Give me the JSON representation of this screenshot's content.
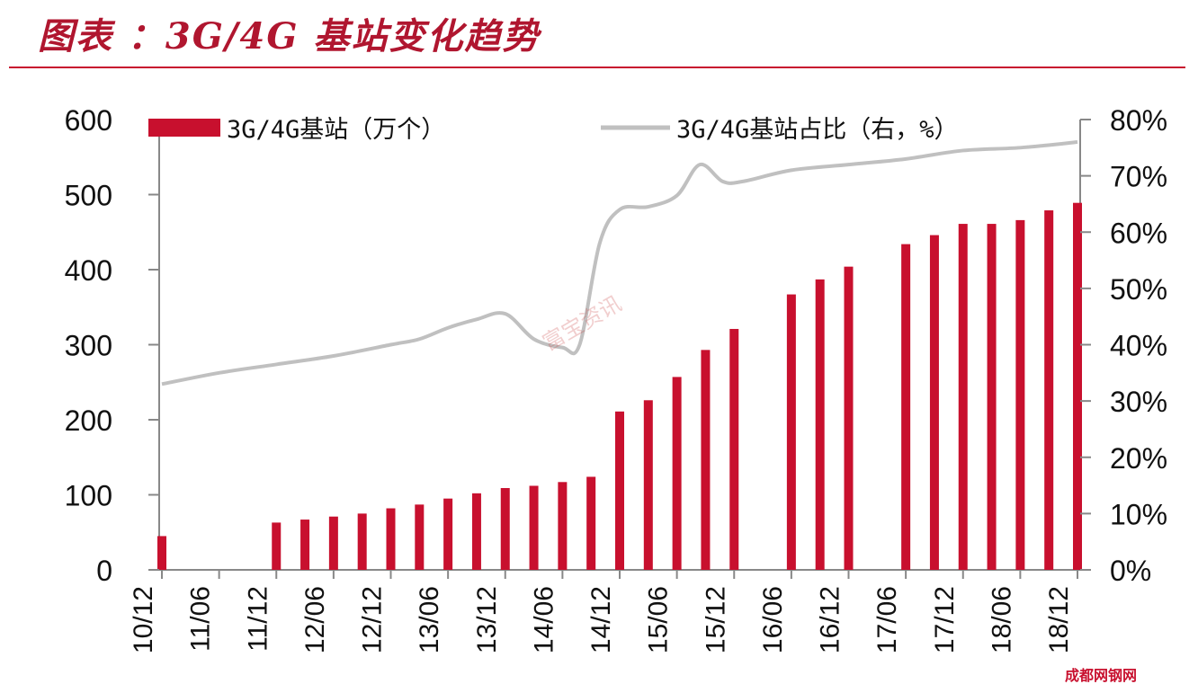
{
  "header": {
    "title": "图表   ：3G/4G 基站变化趋势"
  },
  "watermark": {
    "text": "富宝资讯"
  },
  "footer": {
    "logo_text": "成都网钢网"
  },
  "colors": {
    "bar": "#c8102e",
    "line": "#c0c0c0",
    "title": "#b0162f",
    "axis": "#888888"
  },
  "chart_data": {
    "type": "bar+line",
    "title": "3G/4G 基站变化趋势",
    "x": [
      "10/12",
      "11/06",
      "11/12",
      "12/06",
      "12/12",
      "13/06",
      "13/12",
      "14/06",
      "14/12",
      "15/06",
      "15/12",
      "16/06",
      "16/12",
      "17/06",
      "17/12",
      "18/06",
      "18/12"
    ],
    "xlabels": [
      "10/12",
      "11/06",
      "11/12",
      "12/06",
      "12/12",
      "13/06",
      "13/12",
      "14/06",
      "14/12",
      "15/06",
      "15/12",
      "16/06",
      "16/12",
      "17/06",
      "17/12",
      "18/06",
      "18/12"
    ],
    "xlim": [
      0,
      32
    ],
    "bar_series": {
      "name": "3G/4G基站（万个）",
      "axis": "left",
      "points": [
        [
          0,
          45
        ],
        [
          4,
          63
        ],
        [
          5,
          67
        ],
        [
          6,
          71
        ],
        [
          7,
          75
        ],
        [
          8,
          82
        ],
        [
          9,
          87
        ],
        [
          10,
          95
        ],
        [
          11,
          102
        ],
        [
          12,
          109
        ],
        [
          13,
          112
        ],
        [
          14,
          117
        ],
        [
          15,
          124
        ],
        [
          16,
          211
        ],
        [
          17,
          226
        ],
        [
          18,
          257
        ],
        [
          19,
          293
        ],
        [
          20,
          321
        ],
        [
          22,
          367
        ],
        [
          23,
          387
        ],
        [
          24,
          404
        ],
        [
          26,
          434
        ],
        [
          27,
          446
        ],
        [
          28,
          461
        ],
        [
          29,
          461
        ],
        [
          30,
          466
        ],
        [
          31,
          479
        ],
        [
          32,
          489
        ]
      ]
    },
    "line_series": {
      "name": "3G/4G基站占比（右，%）",
      "axis": "right",
      "points": [
        [
          0,
          33
        ],
        [
          2,
          35
        ],
        [
          4,
          36.5
        ],
        [
          6,
          38
        ],
        [
          8,
          40
        ],
        [
          9,
          41
        ],
        [
          10,
          43
        ],
        [
          11,
          44.5
        ],
        [
          12,
          45.5
        ],
        [
          13,
          41
        ],
        [
          14,
          39.5
        ],
        [
          14.6,
          40
        ],
        [
          15.3,
          58
        ],
        [
          16,
          64
        ],
        [
          17,
          64.5
        ],
        [
          18,
          66.5
        ],
        [
          18.8,
          72
        ],
        [
          19.6,
          69
        ],
        [
          20.3,
          69
        ],
        [
          22,
          71
        ],
        [
          24,
          72
        ],
        [
          26,
          73
        ],
        [
          28,
          74.5
        ],
        [
          30,
          75
        ],
        [
          32,
          76
        ]
      ]
    },
    "y_left": {
      "lim": [
        0,
        600
      ],
      "ticks": [
        "0",
        "100",
        "200",
        "300",
        "400",
        "500",
        "600"
      ]
    },
    "y_right": {
      "lim": [
        0,
        80
      ],
      "ticks": [
        "0%",
        "10%",
        "20%",
        "30%",
        "40%",
        "50%",
        "60%",
        "70%",
        "80%"
      ]
    },
    "legend": {
      "placement": "top",
      "items": [
        "3G/4G基站（万个）",
        "3G/4G基站占比（右，%）"
      ]
    }
  }
}
